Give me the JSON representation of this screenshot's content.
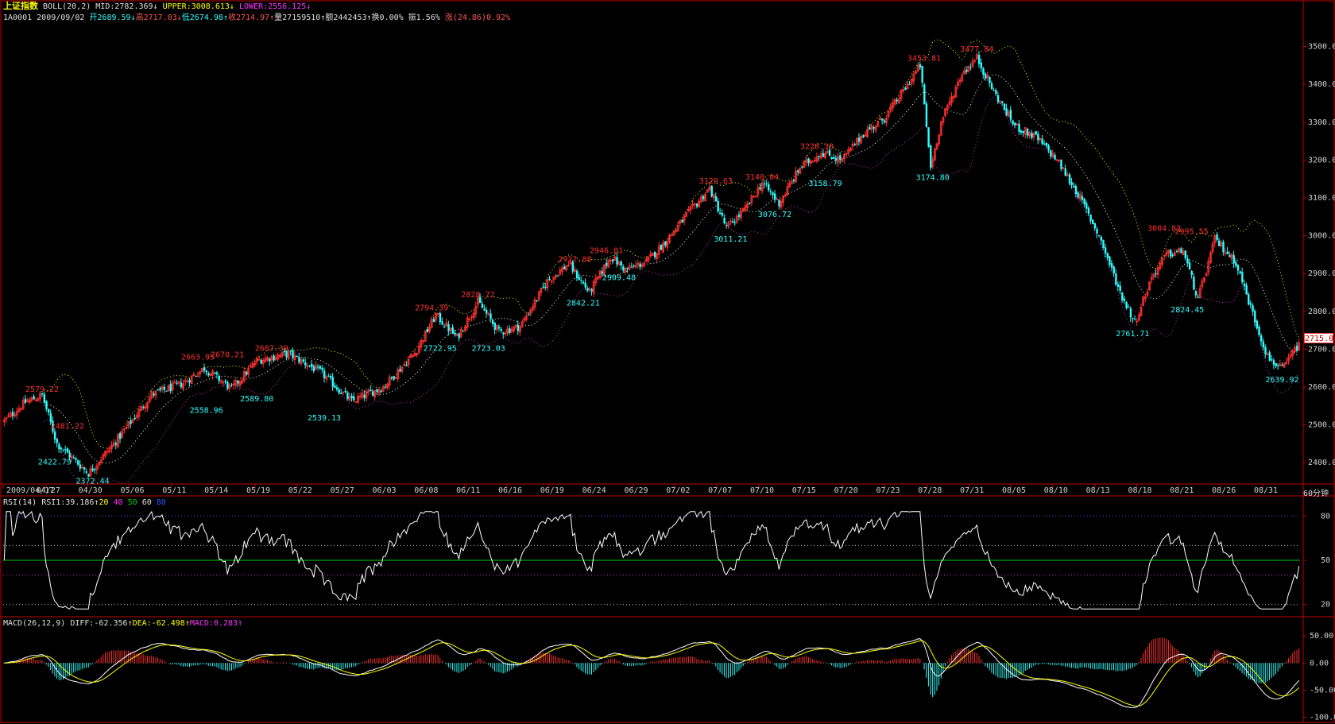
{
  "header": {
    "title": "上证指数",
    "boll_label": "BOLL(20,2)",
    "mid": "MID:2782.369",
    "mid_arrow": "↓",
    "upper": "UPPER:3008.613",
    "upper_arrow": "↓",
    "lower": "LOWER:2556.125",
    "lower_arrow": "↓",
    "code": "1A0001",
    "date": "2009/09/02",
    "open": "开2689.59",
    "open_arrow": "↓",
    "high": "高2717.03",
    "high_arrow": "↓",
    "low": "低2674.98",
    "low_arrow": "↑",
    "close": "收2714.97",
    "close_arrow": "↑",
    "volume": "量27159510",
    "volume_arrow": "↑",
    "amount": "额2442453",
    "amount_arrow": "↑",
    "turnover": "换0.00%",
    "amplitude": "振1.56%",
    "change": "涨(24.86)0.92%"
  },
  "rsi_header": {
    "label": "RSI(14)",
    "value": "RSI1:39.186",
    "arrow": "↑",
    "levels": [
      "20",
      "40",
      "50",
      "60",
      "80"
    ]
  },
  "macd_header": {
    "label": "MACD(26,12,9)",
    "diff": "DIFF:-62.356",
    "diff_arrow": "↑",
    "dea": "DEA:-62.498",
    "dea_arrow": "↑",
    "macd": "MACD:0.283",
    "macd_arrow": "↑"
  },
  "period_label": "60分钟",
  "last_price_tag": "2715.0",
  "colors": {
    "up": "#ff3030",
    "down": "#30ffff",
    "upper_band": "#ffff00",
    "mid_band": "#ffffff",
    "lower_band": "#cc33cc",
    "frame": "#c00000",
    "rsi_line": "#ffffff",
    "rsi_mid": "#00d000",
    "macd_diff": "#ffffff",
    "macd_dea": "#ffff00"
  },
  "chart_data": [
    {
      "type": "candlestick",
      "title": "上证指数",
      "ylim": [
        2350,
        3560
      ],
      "y_ticks": [
        "2400.0",
        "2500.0",
        "2600.0",
        "2700.0",
        "2800.0",
        "2900.0",
        "3000.0",
        "3100.0",
        "3200.0",
        "3300.0",
        "3400.0",
        "3500.0"
      ],
      "x_ticks": [
        "2009/04/17",
        "04/27",
        "04/30",
        "05/06",
        "05/11",
        "05/14",
        "05/19",
        "05/22",
        "05/27",
        "06/03",
        "06/08",
        "06/11",
        "06/16",
        "06/19",
        "06/24",
        "06/29",
        "07/02",
        "07/07",
        "07/10",
        "07/15",
        "07/20",
        "07/23",
        "07/28",
        "07/31",
        "08/05",
        "08/10",
        "08/13",
        "08/18",
        "08/21",
        "08/26",
        "08/31"
      ],
      "close_path": [
        [
          0,
          2510
        ],
        [
          10,
          2560
        ],
        [
          18,
          2578
        ],
        [
          25,
          2450
        ],
        [
          40,
          2372
        ],
        [
          55,
          2470
        ],
        [
          70,
          2580
        ],
        [
          85,
          2610
        ],
        [
          95,
          2650
        ],
        [
          108,
          2595
        ],
        [
          120,
          2670
        ],
        [
          135,
          2688
        ],
        [
          150,
          2640
        ],
        [
          165,
          2562
        ],
        [
          180,
          2600
        ],
        [
          195,
          2690
        ],
        [
          205,
          2790
        ],
        [
          215,
          2730
        ],
        [
          225,
          2825
        ],
        [
          235,
          2745
        ],
        [
          245,
          2760
        ],
        [
          258,
          2880
        ],
        [
          268,
          2925
        ],
        [
          278,
          2850
        ],
        [
          288,
          2945
        ],
        [
          295,
          2910
        ],
        [
          305,
          2930
        ],
        [
          315,
          2990
        ],
        [
          325,
          3060
        ],
        [
          335,
          3125
        ],
        [
          343,
          3020
        ],
        [
          352,
          3070
        ],
        [
          360,
          3140
        ],
        [
          368,
          3085
        ],
        [
          378,
          3180
        ],
        [
          388,
          3220
        ],
        [
          398,
          3200
        ],
        [
          408,
          3270
        ],
        [
          418,
          3310
        ],
        [
          428,
          3390
        ],
        [
          435,
          3450
        ],
        [
          440,
          3180
        ],
        [
          445,
          3300
        ],
        [
          455,
          3430
        ],
        [
          462,
          3470
        ],
        [
          470,
          3380
        ],
        [
          480,
          3290
        ],
        [
          490,
          3260
        ],
        [
          500,
          3200
        ],
        [
          510,
          3110
        ],
        [
          520,
          3000
        ],
        [
          530,
          2850
        ],
        [
          537,
          2770
        ],
        [
          545,
          2890
        ],
        [
          552,
          2950
        ],
        [
          560,
          2960
        ],
        [
          567,
          2830
        ],
        [
          575,
          2990
        ],
        [
          585,
          2930
        ],
        [
          592,
          2810
        ],
        [
          600,
          2680
        ],
        [
          607,
          2645
        ],
        [
          615,
          2715
        ]
      ],
      "labels": [
        {
          "text": "2579.22",
          "kind": "high",
          "x": 18,
          "y": 2579.22
        },
        {
          "text": "2481.22",
          "kind": "high",
          "x": 30,
          "y": 2481.22
        },
        {
          "text": "2422.79",
          "kind": "low",
          "x": 24,
          "y": 2422.79
        },
        {
          "text": "2372.44",
          "kind": "low",
          "x": 42,
          "y": 2372.44
        },
        {
          "text": "2663.95",
          "kind": "high",
          "x": 92,
          "y": 2663.95
        },
        {
          "text": "2670.21",
          "kind": "high",
          "x": 106,
          "y": 2670.21
        },
        {
          "text": "2687.39",
          "kind": "high",
          "x": 127,
          "y": 2687.39
        },
        {
          "text": "2558.96",
          "kind": "low",
          "x": 96,
          "y": 2558.96
        },
        {
          "text": "2589.80",
          "kind": "low",
          "x": 120,
          "y": 2589.8
        },
        {
          "text": "2539.13",
          "kind": "low",
          "x": 152,
          "y": 2539.13
        },
        {
          "text": "2794.39",
          "kind": "high",
          "x": 203,
          "y": 2794.39
        },
        {
          "text": "2828.72",
          "kind": "high",
          "x": 225,
          "y": 2828.72
        },
        {
          "text": "2722.95",
          "kind": "low",
          "x": 207,
          "y": 2722.95
        },
        {
          "text": "2723.03",
          "kind": "low",
          "x": 230,
          "y": 2723.03
        },
        {
          "text": "2922.88",
          "kind": "high",
          "x": 271,
          "y": 2922.88
        },
        {
          "text": "2946.01",
          "kind": "high",
          "x": 286,
          "y": 2946.01
        },
        {
          "text": "2842.21",
          "kind": "low",
          "x": 275,
          "y": 2842.21
        },
        {
          "text": "2909.48",
          "kind": "low",
          "x": 292,
          "y": 2909.48
        },
        {
          "text": "3129.63",
          "kind": "high",
          "x": 338,
          "y": 3129.63
        },
        {
          "text": "3140.04",
          "kind": "high",
          "x": 360,
          "y": 3140.04
        },
        {
          "text": "3011.21",
          "kind": "low",
          "x": 345,
          "y": 3011.21
        },
        {
          "text": "3076.72",
          "kind": "low",
          "x": 366,
          "y": 3076.72
        },
        {
          "text": "3220.38",
          "kind": "high",
          "x": 386,
          "y": 3220.38
        },
        {
          "text": "3158.79",
          "kind": "low",
          "x": 390,
          "y": 3158.79
        },
        {
          "text": "3453.81",
          "kind": "high",
          "x": 437,
          "y": 3453.81
        },
        {
          "text": "3477.84",
          "kind": "high",
          "x": 462,
          "y": 3477.84
        },
        {
          "text": "3174.80",
          "kind": "low",
          "x": 441,
          "y": 3174.8
        },
        {
          "text": "3004.83",
          "kind": "high",
          "x": 551,
          "y": 3004.83
        },
        {
          "text": "2995.55",
          "kind": "high",
          "x": 564,
          "y": 2995.55
        },
        {
          "text": "2761.71",
          "kind": "low",
          "x": 536,
          "y": 2761.71
        },
        {
          "text": "2824.45",
          "kind": "low",
          "x": 562,
          "y": 2824.45
        },
        {
          "text": "2639.92",
          "kind": "low",
          "x": 607,
          "y": 2639.92
        }
      ]
    },
    {
      "type": "line",
      "title": "RSI(14)",
      "ylim": [
        15,
        85
      ],
      "y_ticks": [
        "80",
        "50",
        "20"
      ],
      "reference_levels": [
        20,
        40,
        50,
        60,
        80
      ]
    },
    {
      "type": "bar+line",
      "title": "MACD(26,12,9)",
      "ylim": [
        -105,
        62
      ],
      "y_ticks": [
        "50.00",
        "0.00",
        "-50.00",
        "-100.00"
      ]
    }
  ]
}
